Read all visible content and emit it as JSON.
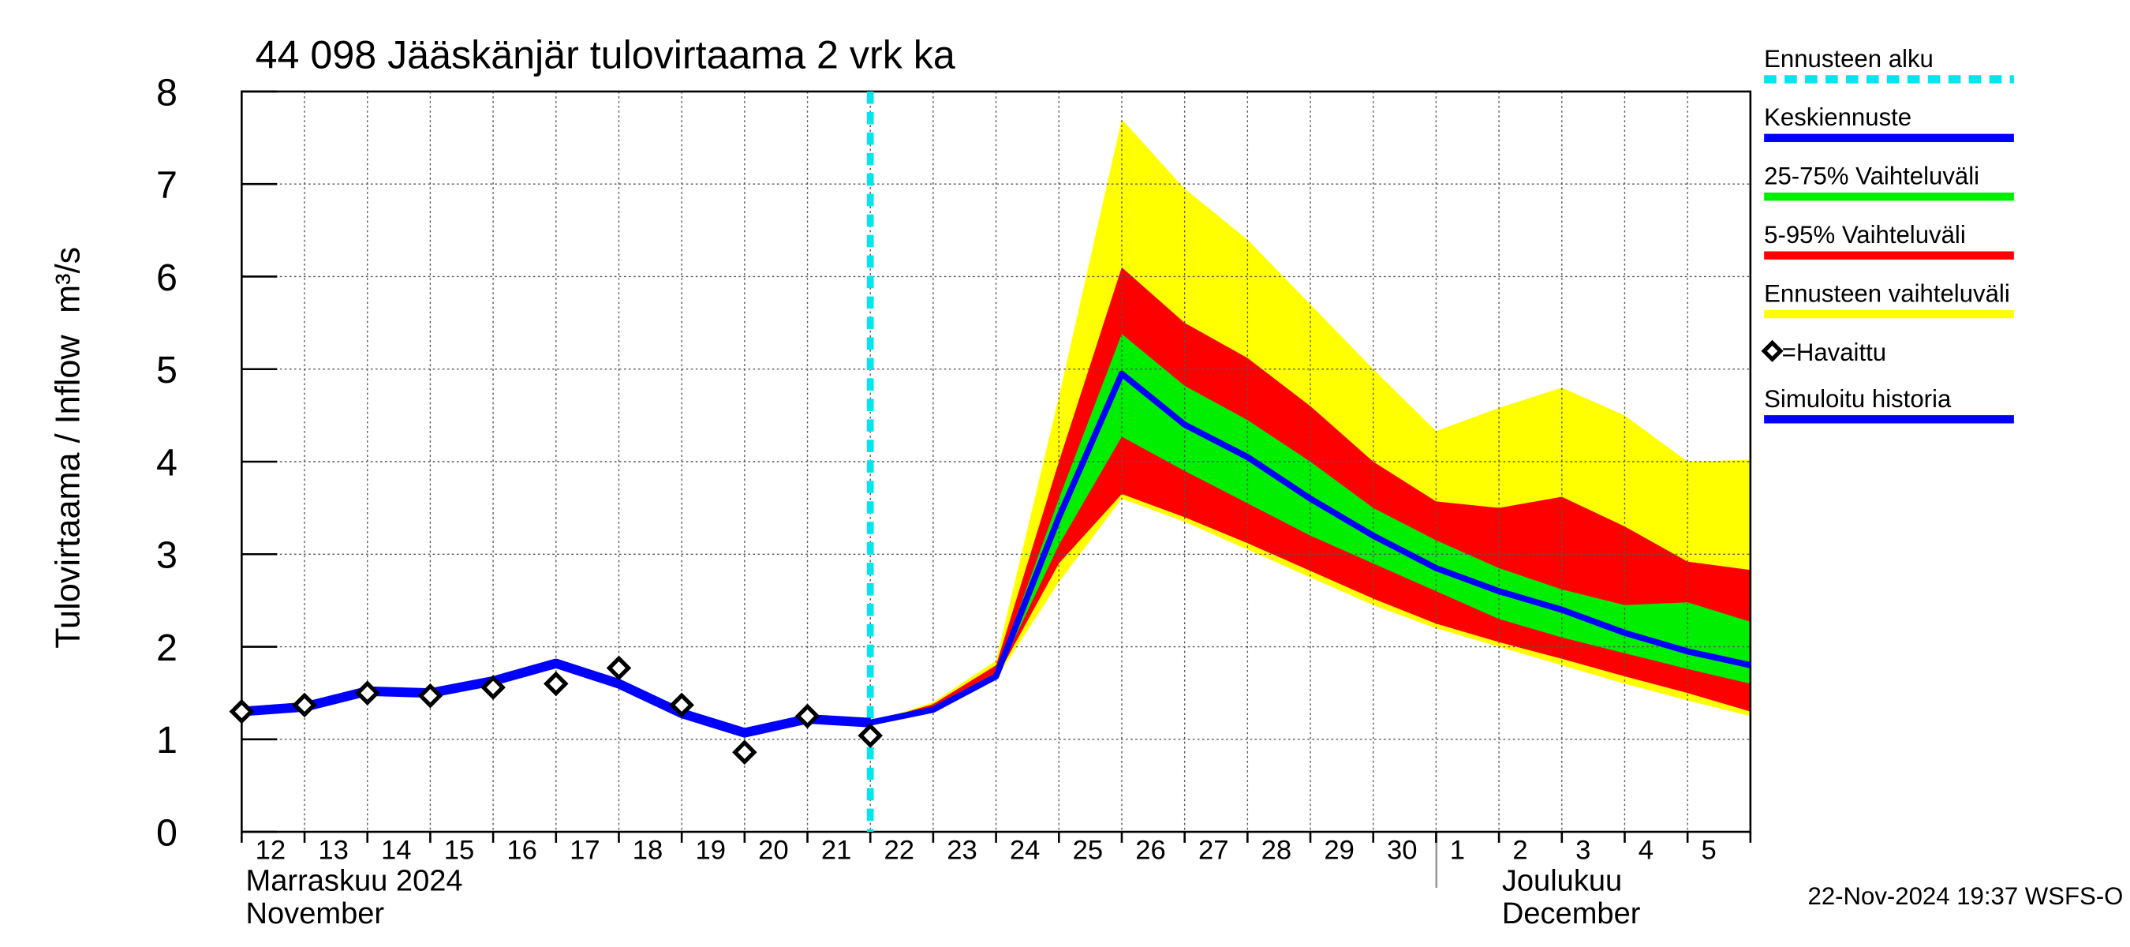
{
  "chart_data": {
    "type": "forecast",
    "title": "44 098 Jääskänjär tulovirtaama 2 vrk ka",
    "y_label": "Tulovirtaama / Inflow",
    "y_unit": "m³/s",
    "month_labels": [
      "Marraskuu 2024",
      "November",
      "Joulukuu",
      "December"
    ],
    "timestamp": "22-Nov-2024 19:37 WSFS-O",
    "categories": [
      "12",
      "13",
      "14",
      "15",
      "16",
      "17",
      "18",
      "19",
      "20",
      "21",
      "22",
      "23",
      "24",
      "25",
      "26",
      "27",
      "28",
      "29",
      "30",
      "1",
      "2",
      "3",
      "4",
      "5",
      null
    ],
    "ylim": [
      0,
      8
    ],
    "yticks": [
      0,
      1,
      2,
      3,
      4,
      5,
      6,
      7,
      8
    ],
    "grid": true,
    "forecast_start": {
      "name": "Ennusteen alku",
      "at": "22",
      "color": "#00e5ee"
    },
    "bands": [
      {
        "name": "Ennusteen vaihteluväli",
        "color": "#ffff00",
        "high": [
          null,
          null,
          null,
          null,
          null,
          null,
          null,
          null,
          null,
          null,
          1.18,
          1.4,
          1.85,
          4.7,
          7.7,
          6.95,
          6.4,
          5.7,
          5.0,
          4.33,
          4.58,
          4.8,
          4.5,
          4.0,
          4.02
        ],
        "low": [
          null,
          null,
          null,
          null,
          null,
          null,
          null,
          null,
          null,
          null,
          1.18,
          1.3,
          1.65,
          2.7,
          3.6,
          3.35,
          3.05,
          2.75,
          2.45,
          2.2,
          2.0,
          1.8,
          1.6,
          1.42,
          1.25
        ]
      },
      {
        "name": "5-95% Vaihteluväli",
        "color": "#ff0000",
        "high": [
          null,
          null,
          null,
          null,
          null,
          null,
          null,
          null,
          null,
          null,
          1.18,
          1.38,
          1.8,
          4.0,
          6.1,
          5.5,
          5.12,
          4.6,
          4.0,
          3.57,
          3.5,
          3.62,
          3.3,
          2.92,
          2.83
        ],
        "low": [
          null,
          null,
          null,
          null,
          null,
          null,
          null,
          null,
          null,
          null,
          1.18,
          1.31,
          1.66,
          2.9,
          3.65,
          3.4,
          3.12,
          2.82,
          2.52,
          2.25,
          2.05,
          1.87,
          1.68,
          1.5,
          1.3
        ]
      },
      {
        "name": "25-75% Vaihteluväli",
        "color": "#00ee00",
        "high": [
          null,
          null,
          null,
          null,
          null,
          null,
          null,
          null,
          null,
          null,
          1.18,
          1.34,
          1.72,
          3.6,
          5.38,
          4.82,
          4.45,
          4.0,
          3.5,
          3.15,
          2.85,
          2.62,
          2.45,
          2.48,
          2.27
        ],
        "low": [
          null,
          null,
          null,
          null,
          null,
          null,
          null,
          null,
          null,
          null,
          1.18,
          1.31,
          1.67,
          3.1,
          4.27,
          3.9,
          3.55,
          3.2,
          2.9,
          2.6,
          2.3,
          2.1,
          1.93,
          1.76,
          1.6
        ]
      }
    ],
    "series": [
      {
        "name": "Simuloitu historia",
        "color": "#0000ff",
        "values": [
          1.3,
          1.35,
          1.52,
          1.5,
          1.63,
          1.82,
          1.6,
          1.28,
          1.07,
          1.22,
          1.18,
          null,
          null,
          null,
          null,
          null,
          null,
          null,
          null,
          null,
          null,
          null,
          null,
          null,
          null
        ]
      },
      {
        "name": "Keskiennuste",
        "color": "#0000ff",
        "values": [
          null,
          null,
          null,
          null,
          null,
          null,
          null,
          null,
          null,
          null,
          1.18,
          1.32,
          1.68,
          3.4,
          4.95,
          4.4,
          4.05,
          3.6,
          3.2,
          2.85,
          2.6,
          2.4,
          2.15,
          1.95,
          1.8
        ]
      }
    ],
    "observed": {
      "name": "=Havaittu",
      "color": "#000000",
      "values": [
        1.3,
        1.37,
        1.5,
        1.47,
        1.56,
        1.6,
        1.77,
        1.37,
        0.86,
        1.25,
        1.04,
        null,
        null,
        null,
        null,
        null,
        null,
        null,
        null,
        null,
        null,
        null,
        null,
        null,
        null
      ]
    }
  }
}
